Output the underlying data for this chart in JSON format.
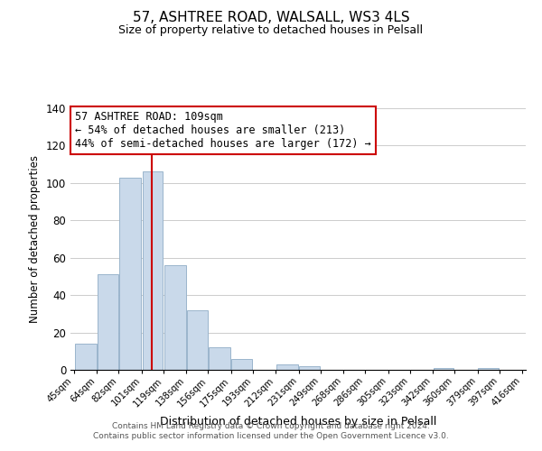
{
  "title": "57, ASHTREE ROAD, WALSALL, WS3 4LS",
  "subtitle": "Size of property relative to detached houses in Pelsall",
  "xlabel": "Distribution of detached houses by size in Pelsall",
  "ylabel": "Number of detached properties",
  "bar_edges": [
    45,
    64,
    82,
    101,
    119,
    138,
    156,
    175,
    193,
    212,
    231,
    249,
    268,
    286,
    305,
    323,
    342,
    360,
    379,
    397,
    416
  ],
  "bar_heights": [
    14,
    51,
    103,
    106,
    56,
    32,
    12,
    6,
    0,
    3,
    2,
    0,
    0,
    0,
    0,
    0,
    1,
    0,
    1,
    0
  ],
  "bar_color": "#c9d9ea",
  "bar_edgecolor": "#9ab5cc",
  "vline_x": 109,
  "vline_color": "#cc0000",
  "ylim": [
    0,
    140
  ],
  "yticks": [
    0,
    20,
    40,
    60,
    80,
    100,
    120,
    140
  ],
  "tick_labels": [
    "45sqm",
    "64sqm",
    "82sqm",
    "101sqm",
    "119sqm",
    "138sqm",
    "156sqm",
    "175sqm",
    "193sqm",
    "212sqm",
    "231sqm",
    "249sqm",
    "268sqm",
    "286sqm",
    "305sqm",
    "323sqm",
    "342sqm",
    "360sqm",
    "379sqm",
    "397sqm",
    "416sqm"
  ],
  "annotation_title": "57 ASHTREE ROAD: 109sqm",
  "annotation_line1": "← 54% of detached houses are smaller (213)",
  "annotation_line2": "44% of semi-detached houses are larger (172) →",
  "footer1": "Contains HM Land Registry data © Crown copyright and database right 2024.",
  "footer2": "Contains public sector information licensed under the Open Government Licence v3.0.",
  "background_color": "#ffffff",
  "grid_color": "#cccccc"
}
